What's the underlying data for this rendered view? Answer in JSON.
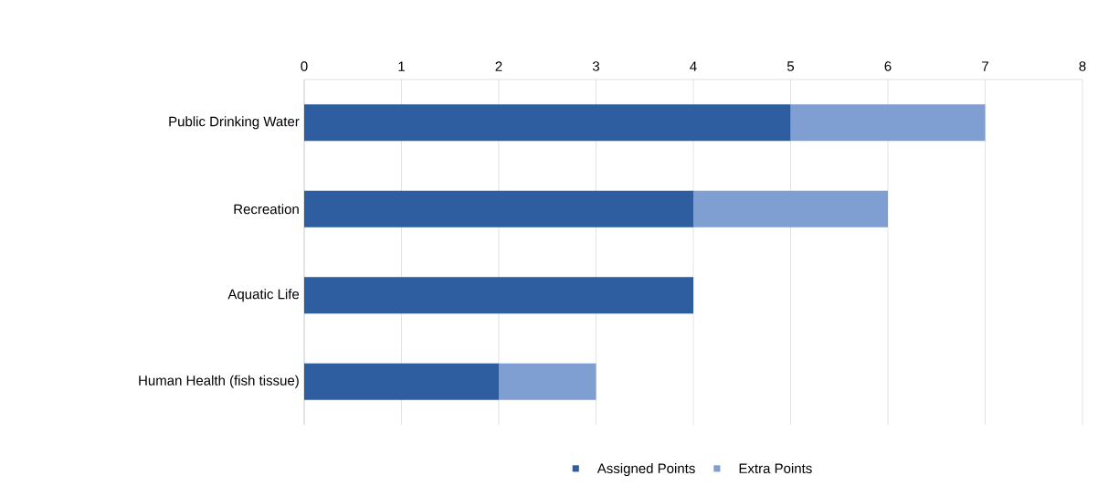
{
  "chart_data": {
    "type": "bar",
    "orientation": "horizontal",
    "stacked": true,
    "categories": [
      "Public Drinking Water",
      "Recreation",
      "Aquatic Life",
      "Human Health (fish tissue)"
    ],
    "series": [
      {
        "name": "Assigned Points",
        "color": "#2e5da0",
        "values": [
          5,
          4,
          4,
          2
        ]
      },
      {
        "name": "Extra Points",
        "color": "#7f9ed2",
        "values": [
          2,
          2,
          0,
          1
        ]
      }
    ],
    "xlim": [
      0,
      8
    ],
    "xticks": [
      0,
      1,
      2,
      3,
      4,
      5,
      6,
      7,
      8
    ],
    "grid": "x",
    "legend": "bottom"
  }
}
